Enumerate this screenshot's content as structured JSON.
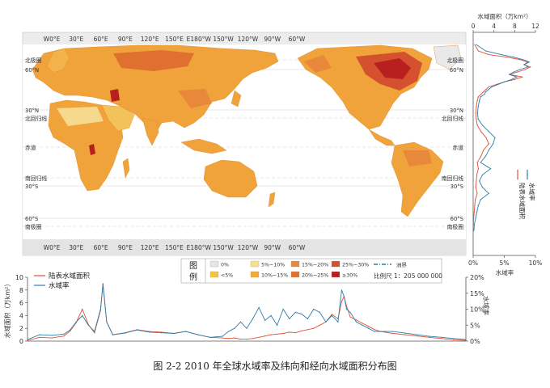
{
  "caption": "图 2-2 2010 年全球水域率及纬向和经向水域面积分布图",
  "colors": {
    "land_area": "#e0503a",
    "water_rate": "#2c7fa8",
    "ocean": "#ffffff",
    "map_frame": "#ececec",
    "land_base": "#f0a33b"
  },
  "map": {
    "top_lon_labels": [
      "W0°E",
      "30°E",
      "60°E",
      "90°E",
      "120°E",
      "150°E",
      "E180°W",
      "150°W",
      "120°W",
      "90°W",
      "60°W"
    ],
    "bottom_lon_labels": [
      "W0°E",
      "30°E",
      "60°E",
      "90°E",
      "120°E",
      "150°E",
      "E180°W",
      "150°W",
      "120°W",
      "90°W",
      "60°W"
    ],
    "left_lat_labels": [
      {
        "text": "北极圈",
        "line": "arctic"
      },
      {
        "text": "60°N",
        "line": "n60"
      },
      {
        "text": "30°N",
        "line": "n30"
      },
      {
        "text": "北回归线",
        "line": "tropic_n"
      },
      {
        "text": "赤道",
        "line": "equator"
      },
      {
        "text": "南回归线",
        "line": "tropic_s"
      },
      {
        "text": "30°S",
        "line": "s30"
      },
      {
        "text": "60°S",
        "line": "s60"
      },
      {
        "text": "南极圈",
        "line": "antarctic"
      }
    ],
    "right_lat_labels": [
      {
        "text": "北极圈",
        "line": "arctic"
      },
      {
        "text": "60°N",
        "line": "n60"
      },
      {
        "text": "30°N",
        "line": "n30"
      },
      {
        "text": "北回归线",
        "line": "tropic_n"
      },
      {
        "text": "赤道",
        "line": "equator"
      },
      {
        "text": "南回归线",
        "line": "tropic_s"
      },
      {
        "text": "30°S",
        "line": "s30"
      },
      {
        "text": "60°S",
        "line": "s60"
      },
      {
        "text": "南极圈",
        "line": "antarctic"
      }
    ]
  },
  "legend": {
    "title_chars": [
      "图",
      "例"
    ],
    "items": [
      {
        "label": "0%",
        "color": "#e6e6e6"
      },
      {
        "label": "<5%",
        "color": "#f4c542"
      },
      {
        "label": "5%~10%",
        "color": "#f7e08a"
      },
      {
        "label": "10%~15%",
        "color": "#f2a93b"
      },
      {
        "label": "15%~20%",
        "color": "#e8883a"
      },
      {
        "label": "20%~25%",
        "color": "#e07030"
      },
      {
        "label": "25%~30%",
        "color": "#d5502e"
      },
      {
        "label": "≥30%",
        "color": "#b82020"
      }
    ],
    "boundary_label": "洲界",
    "scale_label": "比例尺 1：205 000 000"
  },
  "chart_data": [
    {
      "type": "line",
      "name": "longitudinal",
      "x_label_note": "longitude (map columns, W0°E → 60°W)",
      "ylabel": "水域面积（万km²）",
      "ylabel_right": "水域率",
      "ylim": [
        0,
        10
      ],
      "ylim_right": [
        0,
        20
      ],
      "y_ticks": [
        "0",
        "2",
        "4",
        "6",
        "8",
        "10"
      ],
      "y_ticks_right": [
        "0%",
        "5%",
        "10%",
        "15%",
        "20%"
      ],
      "series": [
        {
          "name": "陆表水域面积",
          "color": "#e0503a",
          "axis": "left",
          "x": [
            0,
            10,
            20,
            30,
            35,
            40,
            45,
            50,
            55,
            60,
            62,
            65,
            70,
            80,
            90,
            100,
            110,
            120,
            130,
            140,
            150,
            160,
            165,
            170,
            175,
            180,
            185,
            190,
            195,
            200,
            205,
            210,
            215,
            220,
            225,
            230,
            235,
            240,
            245,
            250,
            255,
            258,
            260,
            262,
            265,
            270,
            275,
            280,
            285,
            290,
            300,
            310,
            320,
            330,
            340,
            350,
            360
          ],
          "values": [
            0.1,
            0.6,
            0.5,
            0.8,
            1.6,
            2.9,
            5.0,
            2.6,
            1.3,
            4.8,
            8.9,
            3.0,
            1.0,
            1.3,
            1.8,
            1.5,
            1.4,
            1.2,
            1.5,
            1.0,
            0.6,
            0.5,
            0.4,
            0.5,
            0.3,
            0.3,
            0.4,
            0.6,
            0.8,
            1.0,
            1.1,
            1.2,
            1.4,
            1.3,
            1.6,
            1.8,
            2.0,
            2.5,
            3.0,
            4.2,
            3.5,
            6.2,
            7.0,
            5.5,
            3.8,
            3.3,
            2.8,
            2.3,
            1.8,
            1.5,
            1.2,
            1.0,
            0.8,
            0.6,
            0.4,
            0.2,
            0.1
          ]
        },
        {
          "name": "水域率",
          "color": "#2c7fa8",
          "axis": "right",
          "x": [
            0,
            10,
            20,
            30,
            35,
            40,
            45,
            50,
            55,
            60,
            62,
            65,
            70,
            80,
            90,
            100,
            110,
            120,
            130,
            140,
            150,
            160,
            165,
            170,
            175,
            180,
            185,
            190,
            195,
            200,
            205,
            210,
            215,
            220,
            225,
            230,
            235,
            240,
            245,
            250,
            255,
            258,
            260,
            262,
            265,
            270,
            275,
            280,
            285,
            290,
            300,
            310,
            320,
            330,
            340,
            350,
            360
          ],
          "values": [
            0.5,
            2.0,
            1.8,
            2.2,
            3.5,
            6.0,
            8.0,
            5.0,
            3.0,
            10.0,
            18.0,
            6.0,
            2.0,
            2.5,
            3.5,
            2.8,
            2.6,
            2.4,
            3.0,
            2.0,
            1.2,
            1.5,
            3.0,
            4.0,
            6.0,
            4.0,
            7.0,
            10.5,
            6.5,
            8.0,
            5.0,
            10.0,
            7.0,
            9.0,
            8.5,
            7.0,
            10.0,
            9.0,
            6.0,
            8.0,
            6.0,
            16.0,
            14.0,
            10.0,
            9.0,
            6.0,
            5.0,
            4.0,
            3.0,
            3.0,
            3.0,
            2.5,
            2.0,
            1.5,
            1.2,
            0.8,
            0.5
          ]
        }
      ]
    },
    {
      "type": "line",
      "name": "latitudinal",
      "orientation": "vertical",
      "ylabel": "latitude (90°N → 90°S)",
      "xlabel_top": "水域面积（万km²）",
      "xlabel_bottom": "水域率",
      "xlim": [
        0,
        12
      ],
      "xlim_bottom": [
        0,
        10
      ],
      "x_ticks": [
        "0",
        "4",
        "8",
        "12"
      ],
      "x_ticks_bottom": [
        "0%",
        "5%",
        "10%"
      ],
      "series": [
        {
          "name": "陆表水域面积",
          "color": "#e0503a",
          "axis": "top",
          "lat": [
            80,
            75,
            72,
            70,
            68,
            66,
            64,
            62,
            60,
            58,
            56,
            54,
            52,
            50,
            48,
            46,
            44,
            42,
            40,
            38,
            35,
            30,
            25,
            20,
            15,
            10,
            5,
            0,
            -5,
            -10,
            -15,
            -20,
            -25,
            -30,
            -35,
            -40,
            -45,
            -50,
            -55,
            -60,
            -65,
            -70
          ],
          "values": [
            0.3,
            1.0,
            3.0,
            6.5,
            9.0,
            10.5,
            9.8,
            11.0,
            10.0,
            8.5,
            7.0,
            9.5,
            8.0,
            6.0,
            4.5,
            3.0,
            2.5,
            2.0,
            1.5,
            1.0,
            0.8,
            0.6,
            0.5,
            0.6,
            0.8,
            1.5,
            2.5,
            3.0,
            2.0,
            1.5,
            0.8,
            1.0,
            0.7,
            0.6,
            0.5,
            0.8,
            0.4,
            0.3,
            0.2,
            0.1,
            0.05,
            0.02
          ]
        },
        {
          "name": "水域率",
          "color": "#2c7fa8",
          "axis": "bottom",
          "lat": [
            80,
            75,
            72,
            70,
            68,
            66,
            64,
            62,
            60,
            58,
            56,
            54,
            52,
            50,
            48,
            46,
            44,
            42,
            40,
            38,
            35,
            30,
            25,
            20,
            15,
            10,
            5,
            0,
            -5,
            -10,
            -15,
            -20,
            -25,
            -30,
            -35,
            -40,
            -45,
            -50,
            -55,
            -60,
            -65,
            -70
          ],
          "values": [
            0.5,
            2.0,
            4.5,
            6.5,
            8.0,
            9.0,
            8.2,
            8.8,
            7.5,
            6.5,
            5.8,
            7.0,
            6.2,
            5.0,
            4.0,
            3.0,
            2.5,
            2.0,
            1.8,
            1.2,
            1.0,
            0.8,
            0.7,
            0.8,
            1.5,
            2.5,
            3.5,
            3.2,
            2.5,
            2.0,
            1.2,
            2.8,
            1.5,
            1.0,
            1.5,
            2.5,
            1.2,
            0.8,
            0.6,
            0.4,
            0.2,
            0.1
          ]
        }
      ]
    }
  ]
}
